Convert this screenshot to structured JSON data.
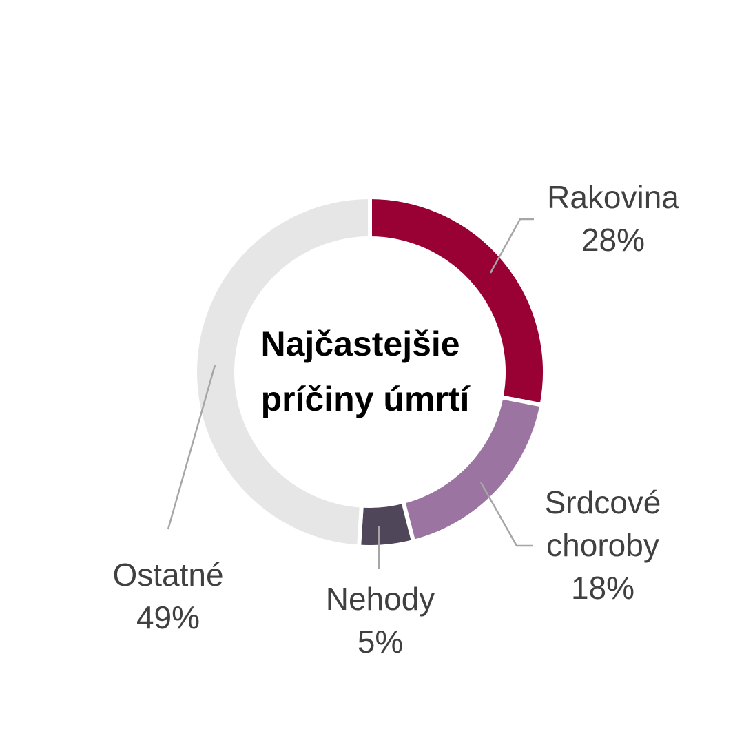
{
  "chart_data": {
    "type": "pie",
    "title": "Najčastejšie príčiny úmrtí",
    "title_lines": [
      "Najčastejšie",
      "príčiny úmrtí"
    ],
    "donut": true,
    "slices": [
      {
        "name": "Rakovina",
        "value": 28,
        "label_lines": [
          "Rakovina",
          "28%"
        ],
        "color": "#990033"
      },
      {
        "name": "Srdcové choroby",
        "value": 18,
        "label_lines": [
          "Srdcové",
          "choroby",
          "18%"
        ],
        "color": "#9b74a1"
      },
      {
        "name": "Nehody",
        "value": 5,
        "label_lines": [
          "Nehody",
          "5%"
        ],
        "color": "#4f4659"
      },
      {
        "name": "Ostatné",
        "value": 49,
        "label_lines": [
          "Ostatné",
          "49%"
        ],
        "color": "#e6e6e6"
      }
    ]
  }
}
